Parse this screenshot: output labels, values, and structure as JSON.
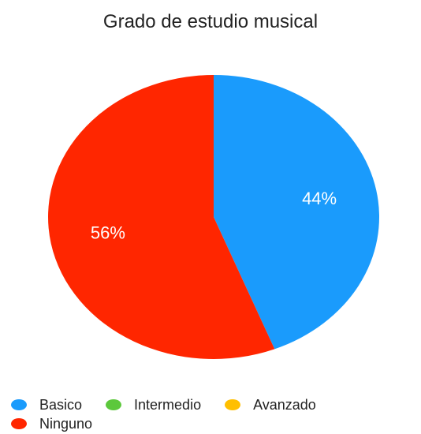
{
  "chart_data": {
    "type": "pie",
    "title": "Grado de estudio musical",
    "categories": [
      "Basico",
      "Intermedio",
      "Avanzado",
      "Ninguno"
    ],
    "values": [
      44,
      0,
      0,
      56
    ],
    "value_labels": [
      "44%",
      "",
      "",
      "56%"
    ],
    "colors": [
      "#1a9bfc",
      "#5cc83c",
      "#ffbf00",
      "#ff2600"
    ],
    "legend": "bottom"
  }
}
